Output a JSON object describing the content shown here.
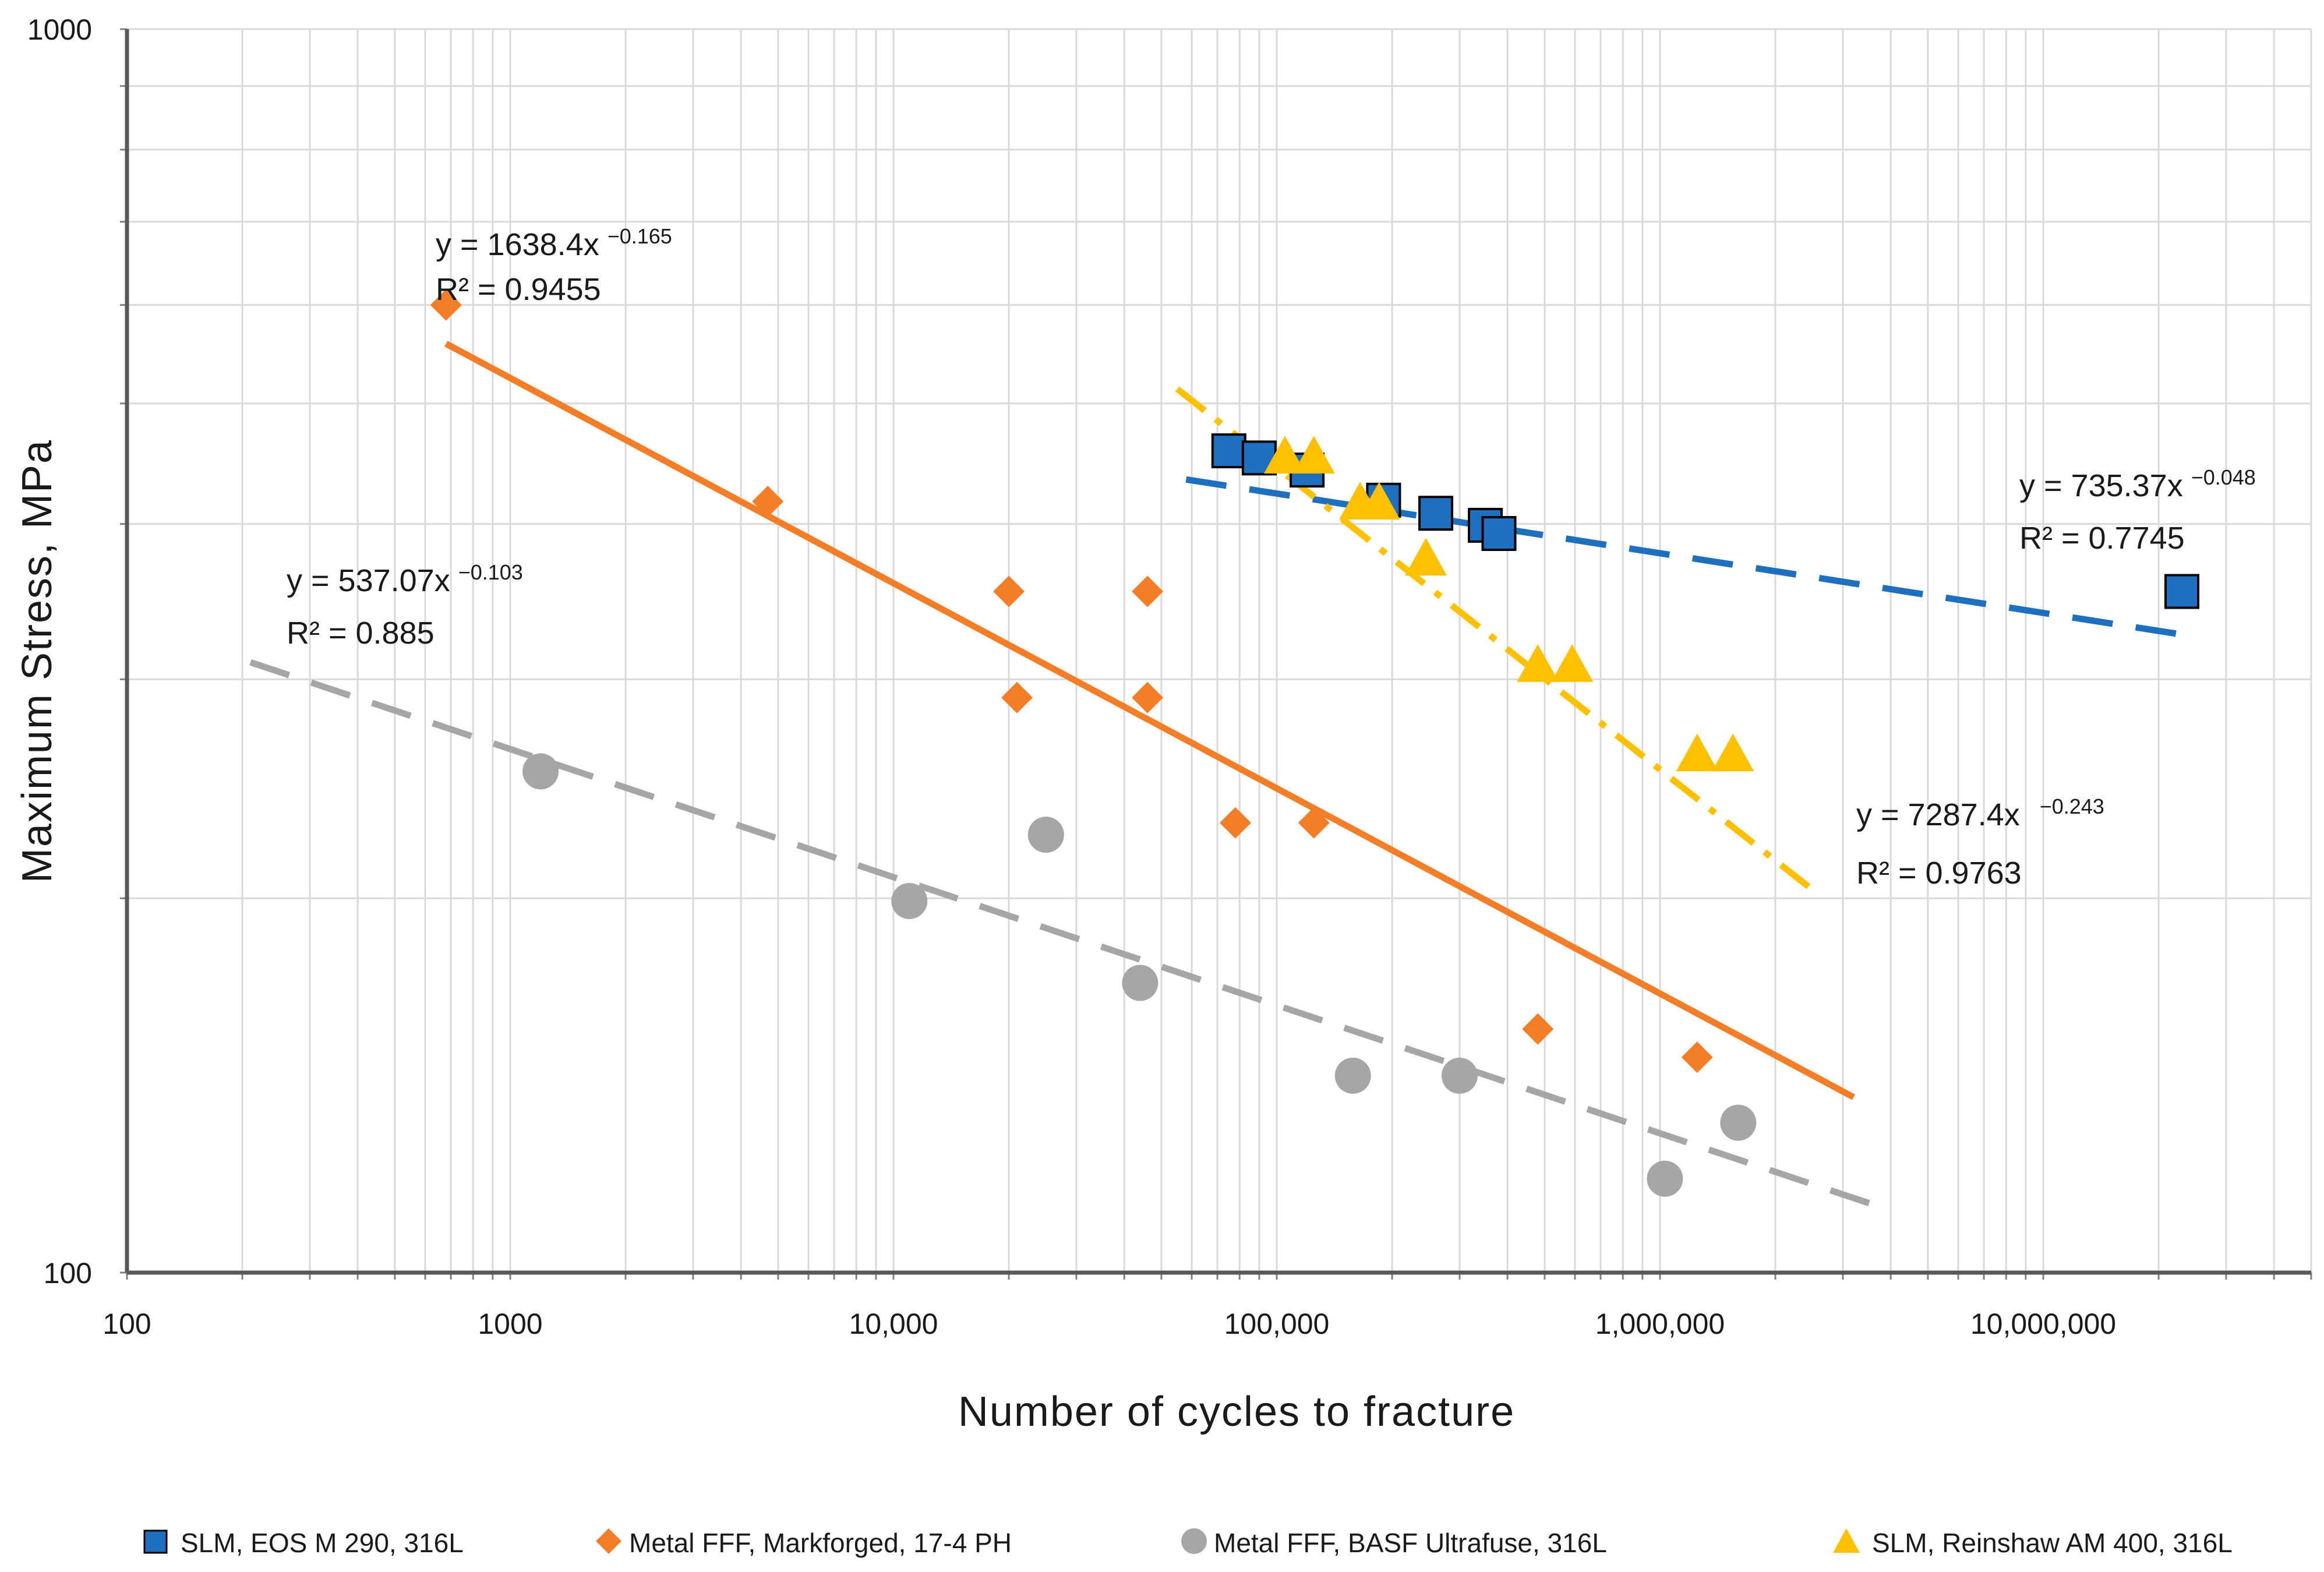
{
  "chart_data": {
    "type": "scatter",
    "xscale": "log",
    "yscale": "log",
    "xlim": [
      100,
      50000000
    ],
    "ylim": [
      100,
      1000
    ],
    "xlabel": "Number of cycles to fracture",
    "ylabel": "Maximum Stress, MPa",
    "x_tick_labels": [
      "100",
      "1000",
      "10,000",
      "100,000",
      "1,000,000",
      "10,000,000"
    ],
    "x_tick_values": [
      100,
      1000,
      10000,
      100000,
      1000000,
      10000000
    ],
    "y_tick_labels": [
      "100",
      "1000"
    ],
    "y_tick_values": [
      100,
      1000
    ],
    "grid": true,
    "legend_position": "bottom",
    "series": [
      {
        "name": "SLM, EOS M 290, 316L",
        "marker": "square",
        "color": "#1f6fbf",
        "points": [
          [
            75000,
            458
          ],
          [
            90000,
            452
          ],
          [
            120000,
            442
          ],
          [
            190000,
            418
          ],
          [
            260000,
            408
          ],
          [
            350000,
            399
          ],
          [
            380000,
            393
          ],
          [
            23000000,
            353
          ]
        ],
        "trend": {
          "a": 735.37,
          "b": -0.048,
          "x_range": [
            58000,
            23000000
          ],
          "style": "dashed"
        },
        "equation": "y = 735.37x",
        "equation_exp": "−0.048",
        "r2": "R² = 0.7745"
      },
      {
        "name": "Metal FFF, Markforged, 17-4 PH",
        "marker": "diamond",
        "color": "#f47d27",
        "points": [
          [
            680,
            600
          ],
          [
            4700,
            417
          ],
          [
            20000,
            353
          ],
          [
            46000,
            353
          ],
          [
            21000,
            290
          ],
          [
            46000,
            290
          ],
          [
            78000,
            230
          ],
          [
            125000,
            230
          ],
          [
            480000,
            157
          ],
          [
            1250000,
            149
          ]
        ],
        "trend": {
          "a": 1638.4,
          "b": -0.165,
          "x_range": [
            680,
            3200000
          ],
          "style": "solid"
        },
        "equation": "y = 1638.4x",
        "equation_exp": "−0.165",
        "r2": "R² = 0.9455"
      },
      {
        "name": "Metal FFF, BASF Ultrafuse, 316L",
        "marker": "circle",
        "color": "#a6a6a6",
        "points": [
          [
            1200,
            253
          ],
          [
            25000,
            225
          ],
          [
            11000,
            199
          ],
          [
            44000,
            171
          ],
          [
            158000,
            144
          ],
          [
            300000,
            144
          ],
          [
            1600000,
            132
          ],
          [
            1030000,
            119
          ]
        ],
        "trend": {
          "a": 537.07,
          "b": -0.103,
          "x_range": [
            210,
            3600000
          ],
          "style": "dashed"
        },
        "equation": "y = 537.07x",
        "equation_exp": "−0.103",
        "r2": "R² = 0.885"
      },
      {
        "name": "SLM, Reinshaw AM 400, 316L",
        "marker": "triangle",
        "color": "#ffc000",
        "points": [
          [
            105000,
            453
          ],
          [
            125000,
            453
          ],
          [
            165000,
            416
          ],
          [
            185000,
            416
          ],
          [
            245000,
            375
          ],
          [
            480000,
            308
          ],
          [
            590000,
            308
          ],
          [
            1250000,
            261
          ],
          [
            1550000,
            261
          ]
        ],
        "trend": {
          "a": 7287.4,
          "b": -0.243,
          "x_range": [
            55000,
            2450000
          ],
          "style": "dashdot"
        },
        "equation": "y = 7287.4x",
        "equation_exp": "−0.243",
        "r2": "R² = 0.9763"
      }
    ]
  }
}
